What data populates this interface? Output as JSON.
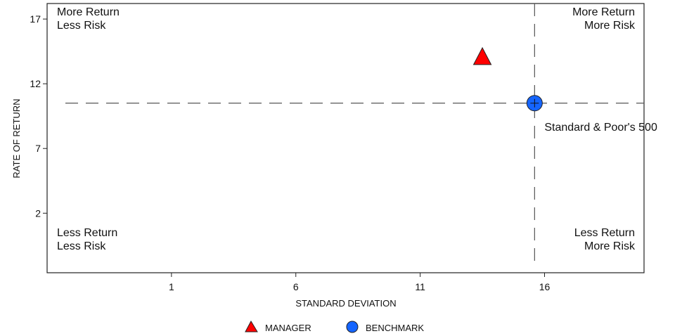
{
  "chart_data": {
    "type": "scatter",
    "xlabel": "STANDARD DEVIATION",
    "ylabel": "RATE OF RETURN",
    "xlim": [
      -4,
      20
    ],
    "ylim": [
      -2.6,
      18.2
    ],
    "xticks": [
      1,
      6,
      11,
      16
    ],
    "yticks": [
      2,
      7,
      12,
      17
    ],
    "grid": false,
    "reference_lines": {
      "x": 15.6,
      "y": 10.5,
      "style": "dashed"
    },
    "series": [
      {
        "name": "MANAGER",
        "marker": "triangle",
        "color": "#ff0000",
        "points": [
          {
            "x": 13.5,
            "y": 14.0
          }
        ]
      },
      {
        "name": "BENCHMARK",
        "marker": "circle",
        "color": "#1565ff",
        "points": [
          {
            "x": 15.6,
            "y": 10.5,
            "label": "Standard & Poor's 500"
          }
        ]
      }
    ],
    "quadrant_labels": {
      "top_left": [
        "More Return",
        "Less Risk"
      ],
      "top_right": [
        "More Return",
        "More Risk"
      ],
      "bottom_left": [
        "Less Return",
        "Less Risk"
      ],
      "bottom_right": [
        "Less Return",
        "More Risk"
      ]
    },
    "legend": {
      "placement": "bottom-center"
    }
  }
}
